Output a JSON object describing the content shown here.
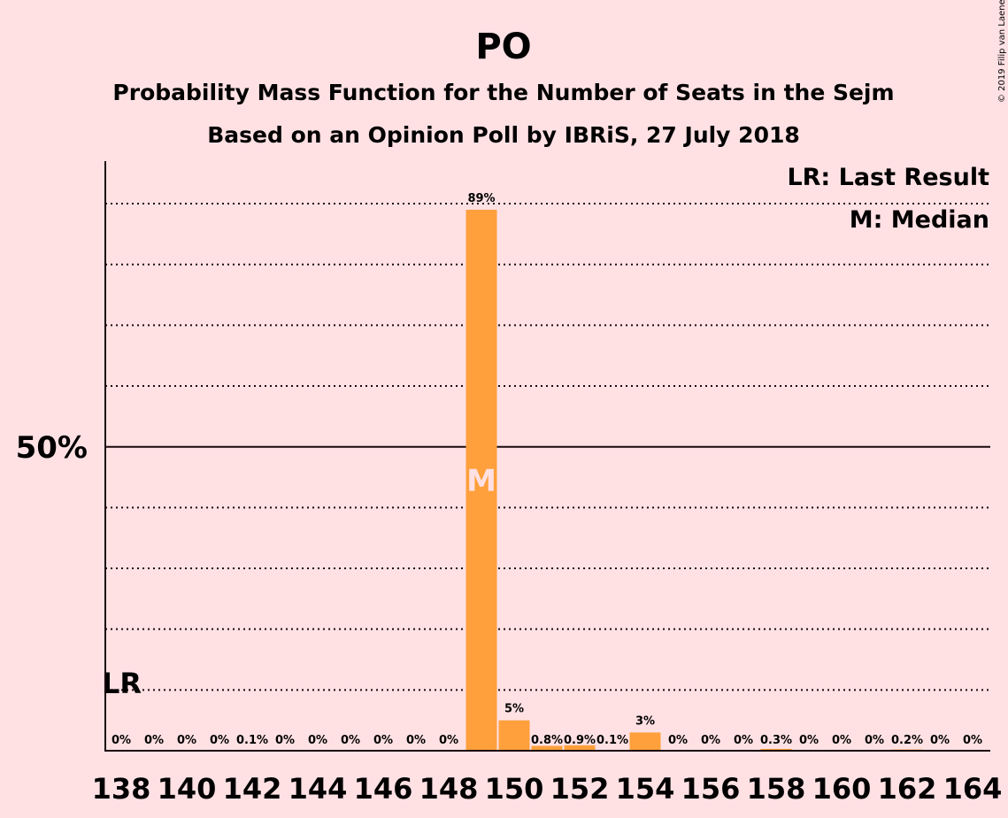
{
  "title": "PO",
  "subtitle1": "Probability Mass Function for the Number of Seats in the Sejm",
  "subtitle2": "Based on an Opinion Poll by IBRiS, 27 July 2018",
  "credit": "© 2019 Filip van Laenen",
  "legend": {
    "last_result": "LR: Last Result",
    "median": "M: Median"
  },
  "colors": {
    "background": "#ffe1e4",
    "bar": "#ffa03c",
    "text": "#1a0a0d"
  },
  "chart_data": {
    "type": "bar",
    "categories": [
      138,
      139,
      140,
      141,
      142,
      143,
      144,
      145,
      146,
      147,
      148,
      149,
      150,
      151,
      152,
      153,
      154,
      155,
      156,
      157,
      158,
      159,
      160,
      161,
      162,
      163,
      164
    ],
    "values": [
      0,
      0,
      0,
      0,
      0.1,
      0,
      0,
      0,
      0,
      0,
      0,
      89,
      5,
      0.8,
      0.9,
      0.1,
      3,
      0,
      0,
      0,
      0.3,
      0,
      0,
      0,
      0.2,
      0,
      0
    ],
    "data_labels": [
      "0%",
      "0%",
      "0%",
      "0%",
      "0.1%",
      "0%",
      "0%",
      "0%",
      "0%",
      "0%",
      "0%",
      "89%",
      "5%",
      "0.8%",
      "0.9%",
      "0.1%",
      "3%",
      "0%",
      "0%",
      "0%",
      "0.3%",
      "0%",
      "0%",
      "0%",
      "0.2%",
      "0%",
      "0%"
    ],
    "x_tick_labels": [
      "138",
      "140",
      "142",
      "144",
      "146",
      "148",
      "150",
      "152",
      "154",
      "156",
      "158",
      "160",
      "162",
      "164"
    ],
    "y_tick_label": "50%",
    "ylim": [
      0,
      97
    ],
    "grid": "dotted every 10%, solid at 50%",
    "last_result": {
      "seat": 138,
      "label": "LR"
    },
    "median": {
      "seat": 149,
      "label": "M"
    }
  }
}
